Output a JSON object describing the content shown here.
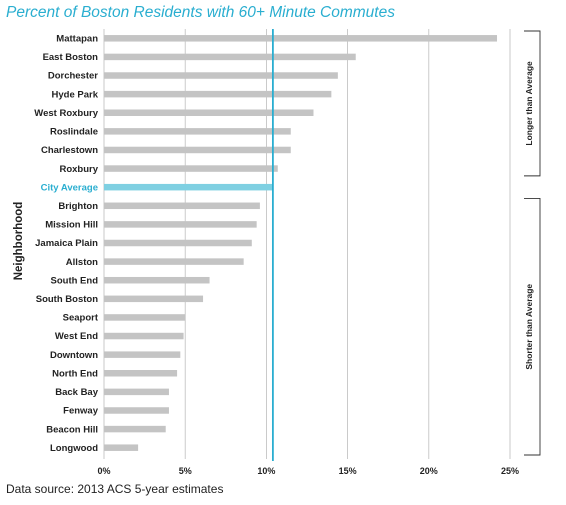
{
  "chart_data": {
    "type": "bar",
    "orientation": "horizontal",
    "title": "Percent of Boston Residents with 60+ Minute Commutes",
    "ylabel": "Neighborhood",
    "xlabel": "",
    "xlim": [
      0,
      25
    ],
    "x_ticks": [
      "0%",
      "5%",
      "10%",
      "15%",
      "20%",
      "25%"
    ],
    "grid": "vertical",
    "categories": [
      "Mattapan",
      "East Boston",
      "Dorchester",
      "Hyde Park",
      "West Roxbury",
      "Roslindale",
      "Charlestown",
      "Roxbury",
      "City Average",
      "Brighton",
      "Mission Hill",
      "Jamaica Plain",
      "Allston",
      "South End",
      "South Boston",
      "Seaport",
      "West End",
      "Downtown",
      "North End",
      "Back Bay",
      "Fenway",
      "Beacon Hill",
      "Longwood"
    ],
    "values": [
      24.2,
      15.5,
      14.4,
      14.0,
      12.9,
      11.5,
      11.5,
      10.7,
      10.4,
      9.6,
      9.4,
      9.1,
      8.6,
      6.5,
      6.1,
      5.0,
      4.9,
      4.7,
      4.5,
      4.0,
      4.0,
      3.8,
      2.1
    ],
    "reference_line": {
      "value": 10.4,
      "category": "City Average"
    },
    "groups": [
      {
        "label": "Longer than Average",
        "first": "Mattapan",
        "last": "Roxbury"
      },
      {
        "label": "Shorter than Average",
        "first": "Brighton",
        "last": "Longwood"
      }
    ],
    "colors": {
      "bar": "#c4c4c4",
      "highlight": "#7fd0e2",
      "reference": "#2aaed0",
      "grid": "#bdbdbd",
      "label": "#222222"
    }
  },
  "source": "Data source: 2013 ACS 5-year estimates"
}
